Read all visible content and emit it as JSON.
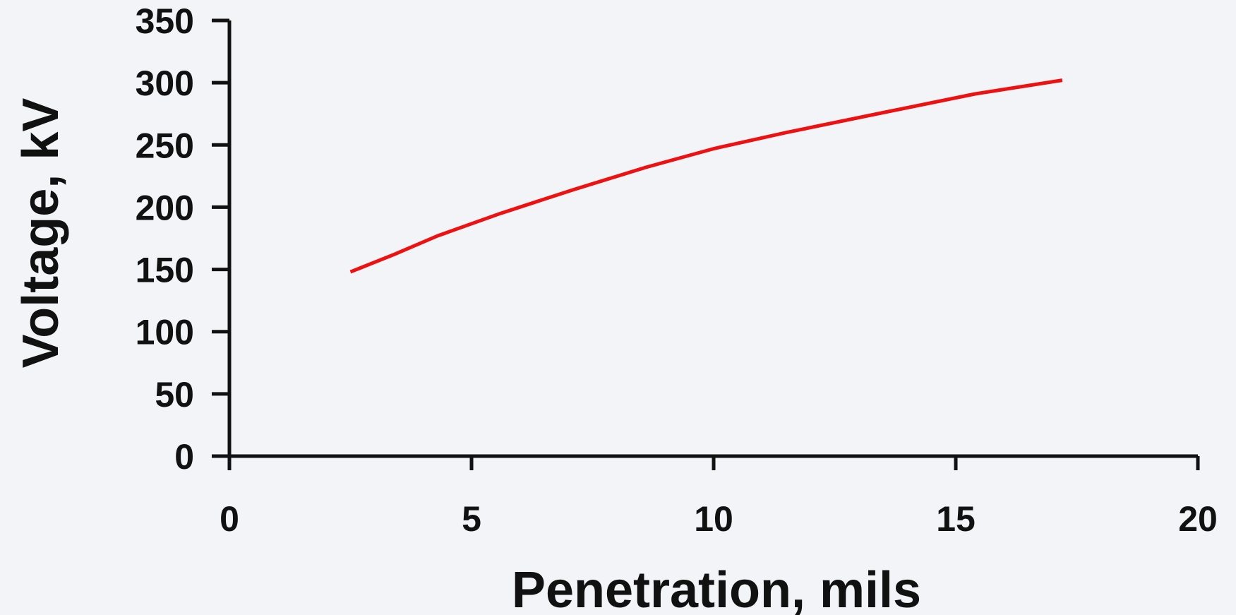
{
  "chart_data": {
    "type": "line",
    "title": "",
    "xlabel": "Penetration, mils",
    "ylabel": "Voltage, kV",
    "xlim": [
      0,
      20
    ],
    "ylim": [
      0,
      350
    ],
    "x_ticks": [
      "0",
      "5",
      "10",
      "15",
      "20"
    ],
    "y_ticks": [
      "0",
      "50",
      "100",
      "150",
      "200",
      "250",
      "300",
      "350"
    ],
    "grid": false,
    "legend": "none",
    "series": [
      {
        "color": "#ee1111",
        "x": [
          2.5,
          3.4,
          4.3,
          5.6,
          7.1,
          8.6,
          10.0,
          11.5,
          13.5,
          15.4,
          17.2
        ],
        "y": [
          148,
          162,
          177,
          195,
          214,
          232,
          247,
          260,
          276,
          291,
          302
        ]
      }
    ]
  }
}
